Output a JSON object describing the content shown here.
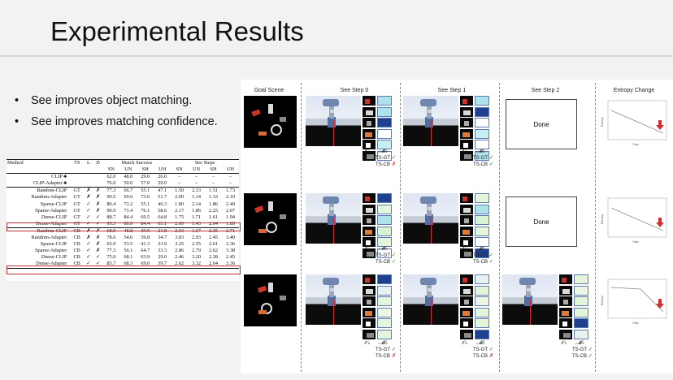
{
  "slide": {
    "title": "Experimental Results",
    "bullets": [
      "See improves object matching.",
      "See improves matching confidence."
    ]
  },
  "table": {
    "header_top": [
      "Method",
      "TS",
      "L",
      "D",
      "Match Success",
      "See Steps"
    ],
    "header_sub": [
      "SN",
      "UN",
      "SH",
      "UH",
      "SN",
      "UN",
      "SH",
      "UH"
    ],
    "rows": [
      [
        "CLIP ♣",
        "",
        "",
        "",
        "62.0",
        "48.0",
        "29.0",
        "26.0",
        "–",
        "–",
        "–",
        "–"
      ],
      [
        "CLIP-Adapter ♣",
        "",
        "",
        "",
        "76.0",
        "50.0",
        "57.0",
        "29.0",
        "–",
        "–",
        "–",
        "–"
      ],
      [
        "Random-CLIP",
        "GT",
        "✗",
        "✗",
        "77.3",
        "66.7",
        "55.1",
        "47.1",
        "1.50",
        "2.13",
        "1.51",
        "1.73"
      ],
      [
        "Random-Adapter",
        "GT",
        "✗",
        "✗",
        "90.5",
        "69.6",
        "73.6",
        "51.7",
        "2.00",
        "1.14",
        "1.33",
        "2.10"
      ],
      [
        "Sparse-CLIP",
        "GT",
        "✓",
        "✗",
        "80.4",
        "73.2",
        "55.1",
        "46.3",
        "1.80",
        "2.14",
        "1.86",
        "2.40"
      ],
      [
        "Sparse-Adapter",
        "GT",
        "✓",
        "✗",
        "90.9",
        "71.4",
        "76.1",
        "58.6",
        "2.17",
        "1.86",
        "2.25",
        "2.07"
      ],
      [
        "Dense-CLIP",
        "GT",
        "✓",
        "✓",
        "88.7",
        "84.4",
        "69.5",
        "64.8",
        "1.75",
        "1.71",
        "1.61",
        "1.94"
      ],
      [
        "Dense-Adapter",
        "GT",
        "✓",
        "✓",
        "95.3",
        "80.0",
        "84.4",
        "63.1",
        "2.00",
        "1.43",
        "2.04",
        "1.89"
      ],
      [
        "Random-CLIP",
        "CB",
        "✗",
        "✗",
        "68.9",
        "48.8",
        "39.9",
        "21.8",
        "2.63",
        "1.67",
        "2.35",
        "2.71"
      ],
      [
        "Random-Adapter",
        "CB",
        "✗",
        "✗",
        "78.6",
        "54.6",
        "59.8",
        "34.7",
        "3.83",
        "2.93",
        "2.45",
        "3.40"
      ],
      [
        "Sparse-CLIP",
        "CB",
        "✓",
        "✗",
        "65.9",
        "53.5",
        "41.3",
        "23.9",
        "3.25",
        "2.55",
        "2.61",
        "2.36"
      ],
      [
        "Sparse-Adapter",
        "CB",
        "✓",
        "✗",
        "77.3",
        "56.1",
        "64.7",
        "33.3",
        "2.86",
        "2.79",
        "2.62",
        "3.38"
      ],
      [
        "Dense-CLIP",
        "CB",
        "✓",
        "✓",
        "75.0",
        "68.1",
        "63.9",
        "29.0",
        "2.46",
        "3.20",
        "2.38",
        "2.45"
      ],
      [
        "Dense-Adapter",
        "CB",
        "✓",
        "✓",
        "85.7",
        "68.3",
        "69.0",
        "39.7",
        "2.62",
        "3.32",
        "2.64",
        "3.36"
      ]
    ]
  },
  "panel": {
    "column_headers": [
      "Goal Scene",
      "See Step 0",
      "See Step 1",
      "See Step 2",
      "Entropy Change"
    ],
    "obs_label": "𝒪ₛ",
    "match_label": "𝓜ₛ",
    "done_label": "Done",
    "ts_gt_label": "TS-GT",
    "ts_cb_label": "TS-CB",
    "entropy_axis_x": "Step",
    "entropy_axis_y": "Entropy"
  },
  "colors": {
    "accent_red": "#b8313a",
    "ok_green": "#2c8a3a",
    "score_blue": "#1f3f8f",
    "score_cyan": "#aee3ea"
  }
}
